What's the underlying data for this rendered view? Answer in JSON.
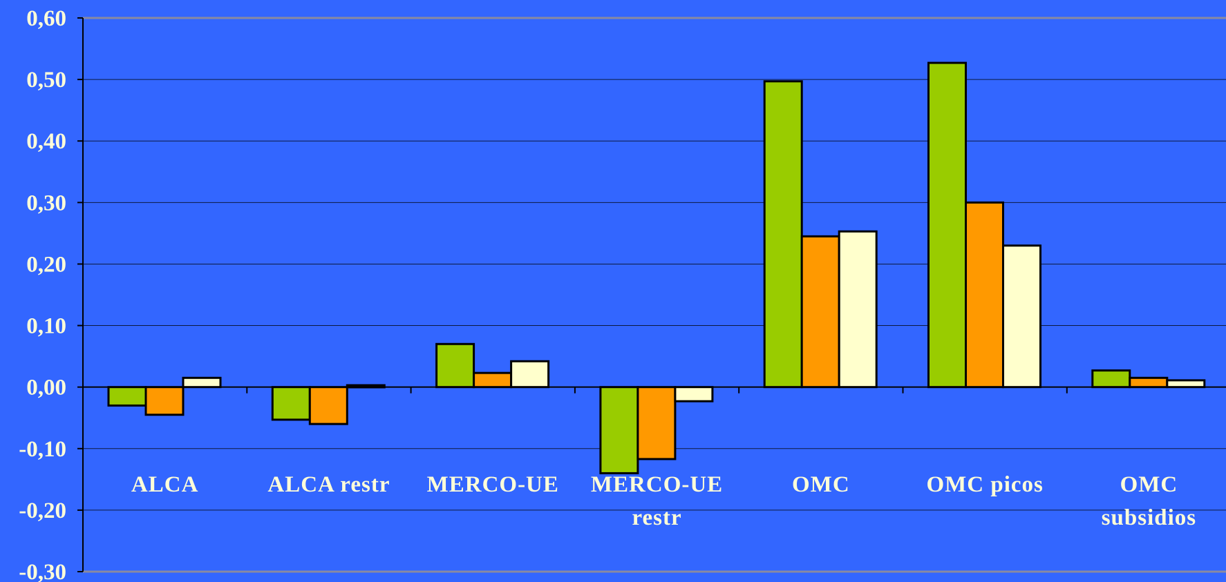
{
  "chart_data": {
    "type": "bar",
    "categories": [
      [
        "ALCA"
      ],
      [
        "ALCA restr"
      ],
      [
        "MERCO-UE"
      ],
      [
        "MERCO-UE",
        "restr"
      ],
      [
        "OMC"
      ],
      [
        "OMC picos"
      ],
      [
        "OMC",
        "subsidios"
      ]
    ],
    "series": [
      {
        "color": "#99cc00",
        "values": [
          -0.03,
          -0.053,
          0.07,
          -0.14,
          0.497,
          0.527,
          0.027
        ]
      },
      {
        "color": "#ff9900",
        "values": [
          -0.045,
          -0.06,
          0.023,
          -0.117,
          0.245,
          0.3,
          0.015
        ]
      },
      {
        "color": "#ffffcc",
        "values": [
          0.015,
          0.003,
          0.042,
          -0.023,
          0.253,
          0.23,
          0.011
        ]
      }
    ],
    "ylim": [
      -0.3,
      0.6
    ],
    "yticks": [
      0.6,
      0.5,
      0.4,
      0.3,
      0.2,
      0.1,
      0.0,
      -0.1,
      -0.2,
      -0.3
    ],
    "ytick_labels": [
      "0,60",
      "0,50",
      "0,40",
      "0,30",
      "0,20",
      "0,10",
      "0,00",
      "-0,10",
      "-0,20",
      "-0,30"
    ],
    "title": "",
    "xlabel": "",
    "ylabel": "",
    "grid": true,
    "background_color": "#3366ff",
    "text_color": "#fffdd8"
  }
}
